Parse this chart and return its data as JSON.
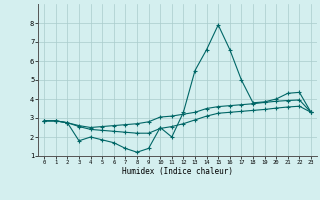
{
  "xlabel": "Humidex (Indice chaleur)",
  "background_color": "#d4efef",
  "grid_color": "#aacccc",
  "line_color": "#006666",
  "xlim": [
    -0.5,
    23.5
  ],
  "ylim": [
    1,
    9
  ],
  "xticks": [
    0,
    1,
    2,
    3,
    4,
    5,
    6,
    7,
    8,
    9,
    10,
    11,
    12,
    13,
    14,
    15,
    16,
    17,
    18,
    19,
    20,
    21,
    22,
    23
  ],
  "yticks": [
    1,
    2,
    3,
    4,
    5,
    6,
    7,
    8
  ],
  "series1_x": [
    0,
    1,
    2,
    3,
    4,
    5,
    6,
    7,
    8,
    9,
    10,
    11,
    12,
    13,
    14,
    15,
    16,
    17,
    18,
    19,
    20,
    21,
    22,
    23
  ],
  "series1_y": [
    2.85,
    2.85,
    2.75,
    1.8,
    2.0,
    1.85,
    1.7,
    1.4,
    1.2,
    1.4,
    2.5,
    2.0,
    3.3,
    5.5,
    6.6,
    7.9,
    6.6,
    5.0,
    3.8,
    3.85,
    4.0,
    4.3,
    4.35,
    3.3
  ],
  "series2_x": [
    0,
    1,
    2,
    3,
    4,
    5,
    6,
    7,
    8,
    9,
    10,
    11,
    12,
    13,
    14,
    15,
    16,
    17,
    18,
    19,
    20,
    21,
    22,
    23
  ],
  "series2_y": [
    2.85,
    2.85,
    2.75,
    2.6,
    2.5,
    2.55,
    2.6,
    2.65,
    2.7,
    2.8,
    3.05,
    3.1,
    3.2,
    3.3,
    3.5,
    3.6,
    3.65,
    3.7,
    3.75,
    3.82,
    3.88,
    3.92,
    3.95,
    3.3
  ],
  "series3_x": [
    0,
    1,
    2,
    3,
    4,
    5,
    6,
    7,
    8,
    9,
    10,
    11,
    12,
    13,
    14,
    15,
    16,
    17,
    18,
    19,
    20,
    21,
    22,
    23
  ],
  "series3_y": [
    2.85,
    2.85,
    2.75,
    2.55,
    2.4,
    2.35,
    2.3,
    2.25,
    2.2,
    2.2,
    2.45,
    2.55,
    2.7,
    2.9,
    3.1,
    3.25,
    3.3,
    3.35,
    3.4,
    3.45,
    3.52,
    3.58,
    3.62,
    3.3
  ]
}
